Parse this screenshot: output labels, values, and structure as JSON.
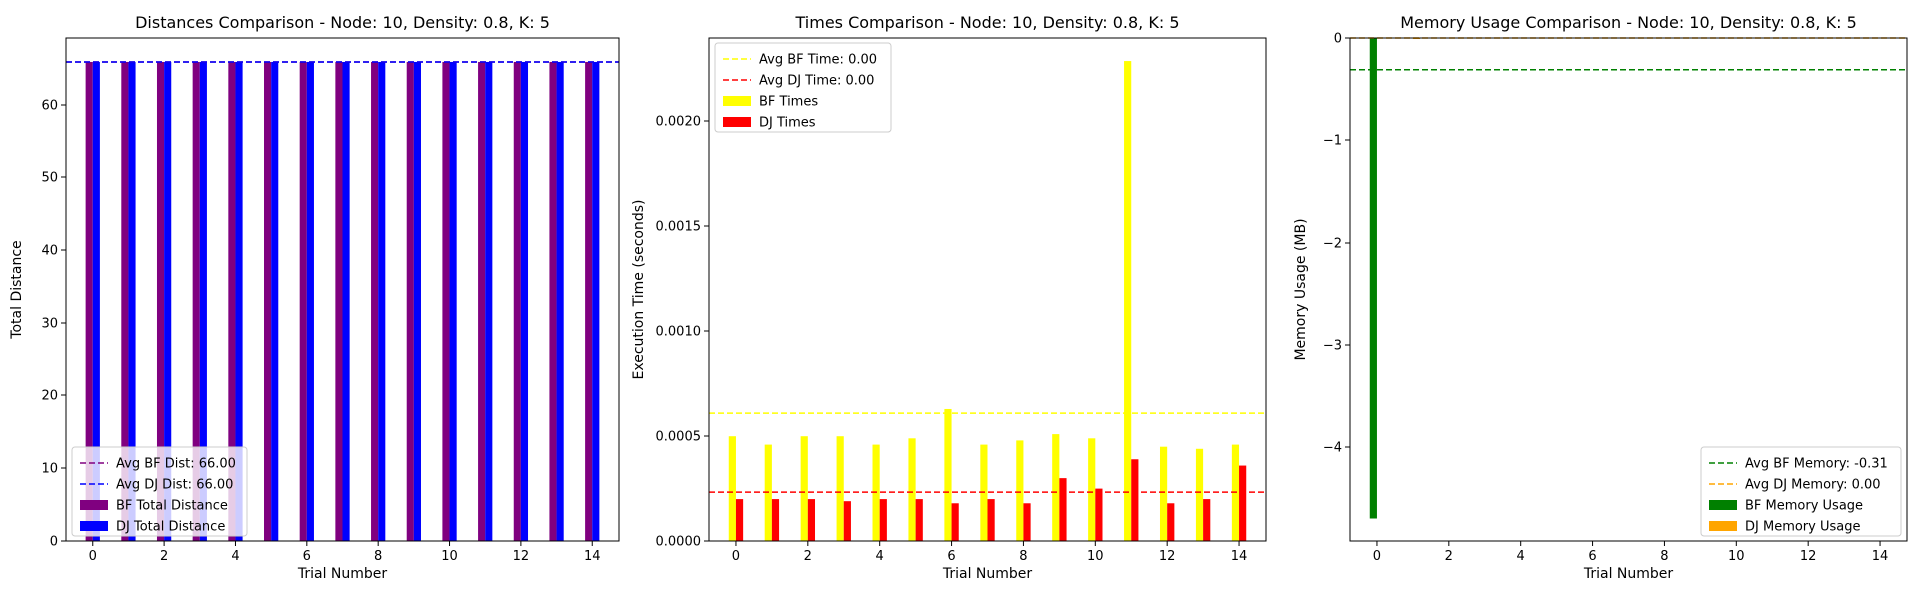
{
  "charts": [
    {
      "title": "Distances Comparison - Node: 10, Density: 0.8, K: 5",
      "xlabel": "Trial Number",
      "ylabel": "Total Distance",
      "xticks": [
        "0",
        "2",
        "4",
        "6",
        "8",
        "10",
        "12",
        "14"
      ],
      "yticks": [
        "0",
        "10",
        "20",
        "30",
        "40",
        "50",
        "60"
      ],
      "legend": [
        "Avg BF Dist: 66.00",
        "Avg DJ Dist: 66.00",
        "BF Total Distance",
        "DJ Total Distance"
      ]
    },
    {
      "title": "Times Comparison - Node: 10, Density: 0.8, K: 5",
      "xlabel": "Trial Number",
      "ylabel": "Execution Time (seconds)",
      "xticks": [
        "0",
        "2",
        "4",
        "6",
        "8",
        "10",
        "12",
        "14"
      ],
      "yticks": [
        "0.0000",
        "0.0005",
        "0.0010",
        "0.0015",
        "0.0020"
      ],
      "legend": [
        "Avg BF Time: 0.00",
        "Avg DJ Time: 0.00",
        "BF Times",
        "DJ Times"
      ]
    },
    {
      "title": "Memory Usage Comparison - Node: 10, Density: 0.8, K: 5",
      "xlabel": "Trial Number",
      "ylabel": "Memory Usage (MB)",
      "xticks": [
        "0",
        "2",
        "4",
        "6",
        "8",
        "10",
        "12",
        "14"
      ],
      "yticks": [
        "−4",
        "−3",
        "−2",
        "−1",
        "0"
      ],
      "legend": [
        "Avg BF Memory: -0.31",
        "Avg DJ Memory: 0.00",
        "BF Memory Usage",
        "DJ Memory Usage"
      ]
    }
  ],
  "chart_data": [
    {
      "type": "bar",
      "title": "Distances Comparison - Node: 10, Density: 0.8, K: 5",
      "xlabel": "Trial Number",
      "ylabel": "Total Distance",
      "x": [
        0,
        1,
        2,
        3,
        4,
        5,
        6,
        7,
        8,
        9,
        10,
        11,
        12,
        13,
        14
      ],
      "xlim": [
        -0.75,
        14.75
      ],
      "ylim": [
        0,
        69.3
      ],
      "grid": false,
      "legend_position": "lower-left",
      "series": [
        {
          "name": "BF Total Distance",
          "color": "#800080",
          "values": [
            66,
            66,
            66,
            66,
            66,
            66,
            66,
            66,
            66,
            66,
            66,
            66,
            66,
            66,
            66
          ]
        },
        {
          "name": "DJ Total Distance",
          "color": "#0000ff",
          "values": [
            66,
            66,
            66,
            66,
            66,
            66,
            66,
            66,
            66,
            66,
            66,
            66,
            66,
            66,
            66
          ]
        }
      ],
      "reference_lines": [
        {
          "name": "Avg BF Dist: 66.00",
          "value": 66.0,
          "color": "#800080"
        },
        {
          "name": "Avg DJ Dist: 66.00",
          "value": 66.0,
          "color": "#0000ff"
        }
      ]
    },
    {
      "type": "bar",
      "title": "Times Comparison - Node: 10, Density: 0.8, K: 5",
      "xlabel": "Trial Number",
      "ylabel": "Execution Time (seconds)",
      "x": [
        0,
        1,
        2,
        3,
        4,
        5,
        6,
        7,
        8,
        9,
        10,
        11,
        12,
        13,
        14
      ],
      "xlim": [
        -0.75,
        14.75
      ],
      "ylim": [
        0,
        0.0024
      ],
      "grid": false,
      "legend_position": "upper-left",
      "series": [
        {
          "name": "BF Times",
          "color": "#ffff00",
          "values": [
            0.0005,
            0.00046,
            0.0005,
            0.0005,
            0.00046,
            0.00049,
            0.00063,
            0.00046,
            0.00048,
            0.00051,
            0.00049,
            0.00229,
            0.00045,
            0.00044,
            0.00046
          ]
        },
        {
          "name": "DJ Times",
          "color": "#ff0000",
          "values": [
            0.0002,
            0.0002,
            0.0002,
            0.00019,
            0.0002,
            0.0002,
            0.00018,
            0.0002,
            0.00018,
            0.0003,
            0.00025,
            0.00039,
            0.00018,
            0.0002,
            0.00036
          ]
        }
      ],
      "reference_lines": [
        {
          "name": "Avg BF Time: 0.00",
          "value": 0.00061,
          "color": "#ffff00"
        },
        {
          "name": "Avg DJ Time: 0.00",
          "value": 0.000233,
          "color": "#ff0000"
        }
      ]
    },
    {
      "type": "bar",
      "title": "Memory Usage Comparison - Node: 10, Density: 0.8, K: 5",
      "xlabel": "Trial Number",
      "ylabel": "Memory Usage (MB)",
      "x": [
        0,
        1,
        2,
        3,
        4,
        5,
        6,
        7,
        8,
        9,
        10,
        11,
        12,
        13,
        14
      ],
      "xlim": [
        -0.75,
        14.75
      ],
      "ylim": [
        -4.92,
        0
      ],
      "grid": false,
      "legend_position": "lower-right",
      "series": [
        {
          "name": "BF Memory Usage",
          "color": "#008000",
          "values": [
            -4.7,
            0,
            0,
            0,
            0,
            0,
            0,
            0,
            0,
            0,
            0,
            0,
            0,
            0,
            0
          ]
        },
        {
          "name": "DJ Memory Usage",
          "color": "#ffa500",
          "values": [
            0,
            -0.01,
            0,
            0,
            0,
            0,
            0,
            0,
            0,
            0,
            0,
            0,
            0,
            0,
            0
          ]
        }
      ],
      "reference_lines": [
        {
          "name": "Avg BF Memory: -0.31",
          "value": -0.31,
          "color": "#008000"
        },
        {
          "name": "Avg DJ Memory: 0.00",
          "value": 0.0,
          "color": "#ffa500"
        }
      ]
    }
  ]
}
